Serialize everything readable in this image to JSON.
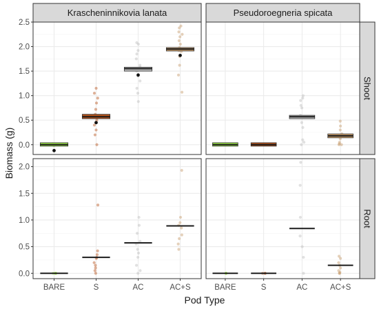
{
  "chart_data": {
    "type": "scatter",
    "xlabel": "Pod Type",
    "ylabel": "Biomass (g)",
    "categories": [
      "BARE",
      "S",
      "AC",
      "AC+S"
    ],
    "columns": [
      "Krascheninnikovia lanata",
      "Pseudoroegneria spicata"
    ],
    "rows": [
      "Shoot",
      "Root"
    ],
    "row_axes": [
      {
        "ylim": [
          -0.2,
          2.5
        ],
        "ticks": [
          "0.0",
          "0.5",
          "1.0",
          "1.5",
          "2.0",
          "2.5"
        ]
      },
      {
        "ylim": [
          -0.1,
          2.15
        ],
        "ticks": [
          "0.0",
          "0.5",
          "1.0",
          "1.5",
          "2.0"
        ]
      }
    ],
    "colors": {
      "BARE": "#9ee847",
      "S": "#b5531a",
      "AC": "#bdbdbd",
      "AC+S": "#c69a68",
      "strip_bg": "#d9d9d9",
      "panel_border": "#333333",
      "grid": "#ebebeb"
    },
    "grid": true,
    "panels": [
      {
        "column": "Krascheninnikovia lanata",
        "row": "Shoot",
        "series": [
          {
            "category": "BARE",
            "mean": 0.0,
            "box": [
              -0.03,
              0.04
            ],
            "points": [
              0.0,
              0.01,
              0.02,
              0.0,
              -0.02
            ],
            "marker": -0.12
          },
          {
            "category": "S",
            "mean": 0.57,
            "box": [
              0.53,
              0.62
            ],
            "points": [
              1.15,
              1.05,
              0.95,
              0.85,
              0.72,
              0.62,
              0.55,
              0.5,
              0.4,
              0.3,
              0.2,
              0.0
            ],
            "marker": 0.45
          },
          {
            "category": "AC",
            "mean": 1.55,
            "box": [
              1.5,
              1.58
            ],
            "points": [
              2.08,
              2.05,
              1.92,
              1.85,
              1.75,
              1.62,
              1.58,
              1.5,
              1.4,
              1.3,
              1.15,
              1.05,
              0.88
            ],
            "marker": 1.42
          },
          {
            "category": "AC+S",
            "mean": 1.95,
            "box": [
              1.91,
              1.98
            ],
            "points": [
              2.42,
              2.38,
              2.3,
              2.25,
              2.2,
              2.12,
              2.05,
              1.98,
              1.92,
              1.9,
              1.8,
              1.62,
              1.42,
              1.07
            ],
            "marker": 1.82
          }
        ]
      },
      {
        "column": "Pseudoroegneria spicata",
        "row": "Shoot",
        "series": [
          {
            "category": "BARE",
            "mean": 0.0,
            "box": [
              -0.03,
              0.04
            ],
            "points": [
              0.0,
              0.01,
              0.0
            ],
            "marker": null
          },
          {
            "category": "S",
            "mean": 0.0,
            "box": [
              -0.03,
              0.04
            ],
            "points": [
              0.0,
              0.0,
              0.01
            ],
            "marker": null
          },
          {
            "category": "AC",
            "mean": 0.57,
            "box": [
              0.53,
              0.6
            ],
            "points": [
              1.0,
              0.95,
              0.9,
              0.8,
              0.75,
              0.6,
              0.58,
              0.45,
              0.35,
              0.1,
              0.05,
              0.0
            ],
            "marker": null
          },
          {
            "category": "AC+S",
            "mean": 0.18,
            "box": [
              0.14,
              0.22
            ],
            "points": [
              0.48,
              0.38,
              0.3,
              0.22,
              0.18,
              0.12,
              0.05,
              0.02,
              0.0,
              0.0
            ],
            "marker": null
          }
        ]
      },
      {
        "column": "Krascheninnikovia lanata",
        "row": "Root",
        "series": [
          {
            "category": "BARE",
            "mean": 0.0,
            "box": null,
            "points": [
              0.0,
              0.0,
              0.0,
              0.0
            ],
            "marker": null
          },
          {
            "category": "S",
            "mean": 0.3,
            "box": null,
            "points": [
              1.28,
              0.42,
              0.35,
              0.3,
              0.28,
              0.2,
              0.15,
              0.1,
              0.05,
              0.0
            ],
            "marker": null
          },
          {
            "category": "AC",
            "mean": 0.57,
            "box": null,
            "points": [
              1.05,
              0.9,
              0.75,
              0.6,
              0.55,
              0.45,
              0.38,
              0.3,
              0.15,
              0.05,
              0.0
            ],
            "marker": null
          },
          {
            "category": "AC+S",
            "mean": 0.89,
            "box": null,
            "points": [
              1.93,
              1.05,
              0.95,
              0.9,
              0.85,
              0.72,
              0.65,
              0.55,
              0.45
            ],
            "marker": null
          }
        ]
      },
      {
        "column": "Pseudoroegneria spicata",
        "row": "Root",
        "series": [
          {
            "category": "BARE",
            "mean": 0.0,
            "box": null,
            "points": [
              0.0,
              0.0,
              0.0
            ],
            "marker": null
          },
          {
            "category": "S",
            "mean": 0.0,
            "box": null,
            "points": [
              0.0,
              0.0,
              0.0
            ],
            "marker": null
          },
          {
            "category": "AC",
            "mean": 0.84,
            "box": null,
            "points": [
              2.08,
              1.65,
              1.05,
              0.7,
              0.5,
              0.3,
              0.0
            ],
            "marker": null
          },
          {
            "category": "AC+S",
            "mean": 0.15,
            "box": null,
            "points": [
              0.32,
              0.28,
              0.2,
              0.15,
              0.1,
              0.05,
              0.02,
              0.0,
              0.0
            ],
            "marker": null
          }
        ]
      }
    ]
  }
}
